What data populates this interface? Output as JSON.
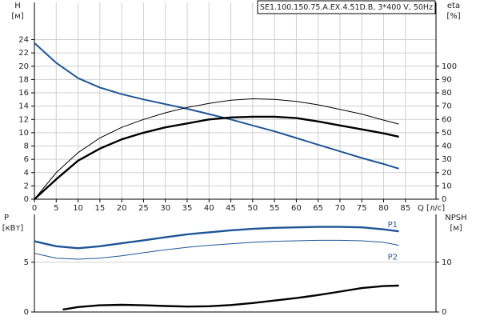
{
  "chart_data": [
    {
      "type": "line",
      "title": "SE1.100.150.75.A.EX.4.51D.B, 3*400 V, 50Hz",
      "y_label": "H",
      "y_unit": "[м]",
      "y2_label": "eta",
      "y2_unit": "[%]",
      "x_label": "Q [л/с]",
      "x": [
        0,
        5,
        10,
        15,
        20,
        25,
        30,
        35,
        40,
        45,
        50,
        55,
        60,
        65,
        70,
        75,
        80,
        83.5
      ],
      "xlim": [
        0,
        92
      ],
      "xticks": [
        0,
        5,
        10,
        15,
        20,
        25,
        30,
        35,
        40,
        45,
        50,
        55,
        60,
        65,
        70,
        75,
        80,
        85
      ],
      "ylim": [
        0,
        29.6
      ],
      "yticks": [
        0,
        2,
        4,
        6,
        8,
        10,
        12,
        14,
        16,
        18,
        20,
        22,
        24
      ],
      "y2lim": [
        0,
        148
      ],
      "y2ticks": [
        0,
        10,
        20,
        30,
        40,
        50,
        60,
        70,
        80,
        90,
        100
      ],
      "grid": true,
      "series": [
        {
          "color": "#1f5596",
          "width": 2,
          "values": [
            23.5,
            20.5,
            18.2,
            16.8,
            15.8,
            15.0,
            14.3,
            13.6,
            12.8,
            12.0,
            11.1,
            10.2,
            9.2,
            8.2,
            7.2,
            6.2,
            5.3,
            4.6
          ]
        },
        {
          "color": "#000000",
          "width": 1,
          "axis": "y2",
          "values": [
            0,
            20,
            35,
            46,
            54,
            60,
            65,
            69,
            72,
            74.5,
            75.5,
            75,
            73.5,
            71,
            67.5,
            64,
            59.5,
            56.5
          ]
        },
        {
          "color": "#000000",
          "width": 2.4,
          "axis": "y2",
          "values": [
            0,
            15,
            29,
            38,
            45,
            50,
            54,
            57,
            60,
            61.5,
            62,
            62,
            61,
            58.5,
            55.5,
            52.5,
            49.5,
            47
          ]
        }
      ]
    },
    {
      "type": "line",
      "y_label": "P",
      "y_unit": "[кВт]",
      "y2_label": "NPSH",
      "y2_unit": "[м]",
      "x": [
        0,
        5,
        10,
        15,
        20,
        25,
        30,
        35,
        40,
        45,
        50,
        55,
        60,
        65,
        70,
        75,
        80,
        83.5
      ],
      "xlim": [
        0,
        92
      ],
      "ylim": [
        0,
        9.8
      ],
      "yticks": [
        0,
        5
      ],
      "y2lim": [
        0,
        19.6
      ],
      "y2ticks": [
        0,
        10
      ],
      "grid": true,
      "series": [
        {
          "name": "P1",
          "color": "#1f5596",
          "width": 2.4,
          "values": [
            7.1,
            6.6,
            6.4,
            6.6,
            6.9,
            7.2,
            7.5,
            7.8,
            8.0,
            8.2,
            8.35,
            8.45,
            8.5,
            8.55,
            8.55,
            8.5,
            8.3,
            8.1
          ]
        },
        {
          "name": "P2",
          "color": "#1f5596",
          "width": 1,
          "values": [
            5.9,
            5.4,
            5.3,
            5.4,
            5.65,
            5.95,
            6.25,
            6.5,
            6.7,
            6.85,
            7.0,
            7.1,
            7.15,
            7.2,
            7.2,
            7.15,
            7.0,
            6.7
          ]
        },
        {
          "color": "#000000",
          "width": 2.4,
          "axis": "y2",
          "x": [
            6.5,
            10,
            15,
            20,
            25,
            30,
            35,
            40,
            45,
            50,
            55,
            60,
            65,
            70,
            75,
            80,
            83.5
          ],
          "values": [
            0.5,
            1.0,
            1.35,
            1.45,
            1.35,
            1.2,
            1.1,
            1.15,
            1.4,
            1.8,
            2.3,
            2.8,
            3.4,
            4.1,
            4.8,
            5.2,
            5.3
          ]
        }
      ]
    }
  ]
}
